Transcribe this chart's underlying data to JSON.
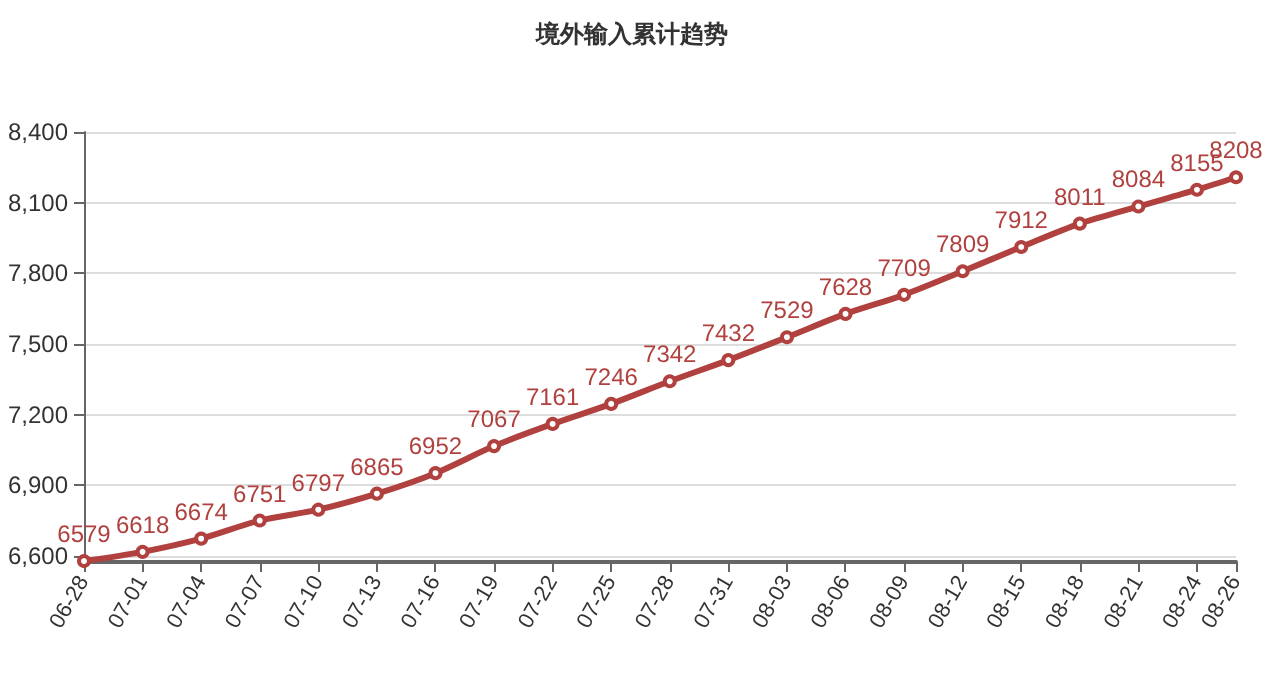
{
  "chart_data": {
    "type": "line",
    "title": "境外输入累计趋势",
    "x": [
      "--06-28",
      "--07-01",
      "--07-04",
      "--07-07",
      "--07-10",
      "--07-13",
      "--07-16",
      "--07-19",
      "--07-22",
      "--07-25",
      "--07-28",
      "--07-31",
      "--08-03",
      "--08-06",
      "--08-09",
      "--08-12",
      "--08-15",
      "--08-18",
      "--08-21",
      "--08-24",
      "--08-26"
    ],
    "values": [
      6579,
      6618,
      6674,
      6751,
      6797,
      6865,
      6952,
      7067,
      7161,
      7246,
      7342,
      7432,
      7529,
      7628,
      7709,
      7809,
      7912,
      8011,
      8084,
      8155,
      8208
    ],
    "color": "#b0413e",
    "xlim": [
      "--06-28",
      "--08-26"
    ],
    "xticks": [
      {
        "value": "--06-28",
        "label": "06-28"
      },
      {
        "value": "--07-01",
        "label": "07-01"
      },
      {
        "value": "--07-04",
        "label": "07-04"
      },
      {
        "value": "--07-07",
        "label": "07-07"
      },
      {
        "value": "--07-10",
        "label": "07-10"
      },
      {
        "value": "--07-13",
        "label": "07-13"
      },
      {
        "value": "--07-16",
        "label": "07-16"
      },
      {
        "value": "--07-19",
        "label": "07-19"
      },
      {
        "value": "--07-22",
        "label": "07-22"
      },
      {
        "value": "--07-25",
        "label": "07-25"
      },
      {
        "value": "--07-28",
        "label": "07-28"
      },
      {
        "value": "--07-31",
        "label": "07-31"
      },
      {
        "value": "--08-03",
        "label": "08-03"
      },
      {
        "value": "--08-06",
        "label": "08-06"
      },
      {
        "value": "--08-09",
        "label": "08-09"
      },
      {
        "value": "--08-12",
        "label": "08-12"
      },
      {
        "value": "--08-15",
        "label": "08-15"
      },
      {
        "value": "--08-18",
        "label": "08-18"
      },
      {
        "value": "--08-21",
        "label": "08-21"
      },
      {
        "value": "--08-24",
        "label": "08-24"
      },
      {
        "value": "--08-26",
        "label": "08-26"
      }
    ],
    "ylim": [
      6575,
      8400
    ],
    "yticks": [
      {
        "value": 6600,
        "label": "6,600"
      },
      {
        "value": 6900,
        "label": "6,900"
      },
      {
        "value": 7200,
        "label": "7,200"
      },
      {
        "value": 7500,
        "label": "7,500"
      },
      {
        "value": 7800,
        "label": "7,800"
      },
      {
        "value": 8100,
        "label": "8,100"
      },
      {
        "value": 8400,
        "label": "8,400"
      }
    ],
    "grid": "y",
    "marker": "circle",
    "line_style": "solid",
    "data_labels": true
  }
}
